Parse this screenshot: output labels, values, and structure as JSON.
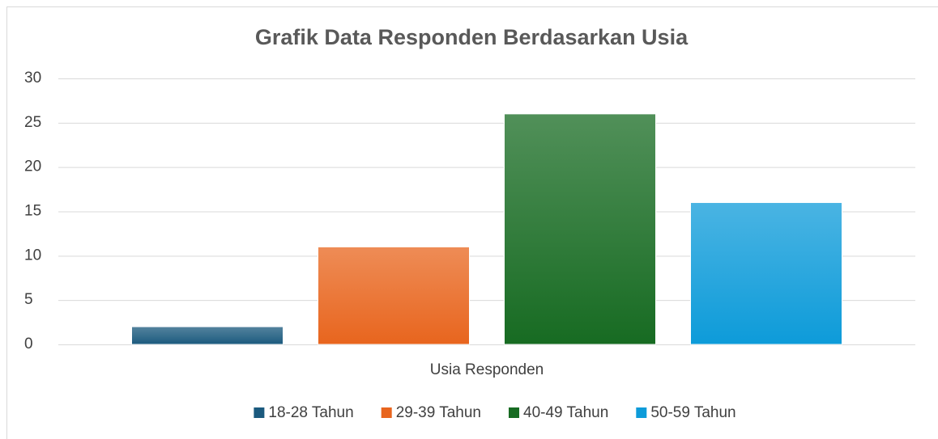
{
  "chart_data": {
    "type": "bar",
    "title": "Grafik Data Responden Berdasarkan Usia",
    "categories": [
      "Usia Responden"
    ],
    "series": [
      {
        "name": "18-28 Tahun",
        "color": "#1b5a7e",
        "values": [
          2
        ]
      },
      {
        "name": "29-39 Tahun",
        "color": "#e8651e",
        "values": [
          11
        ]
      },
      {
        "name": "40-49 Tahun",
        "color": "#176b22",
        "values": [
          26
        ]
      },
      {
        "name": "50-59 Tahun",
        "color": "#0d9bd9",
        "values": [
          16
        ]
      }
    ],
    "ylim": [
      0,
      30
    ],
    "yticks": [
      0,
      5,
      10,
      15,
      20,
      25,
      30
    ],
    "grid": true,
    "legend": "bottom"
  }
}
